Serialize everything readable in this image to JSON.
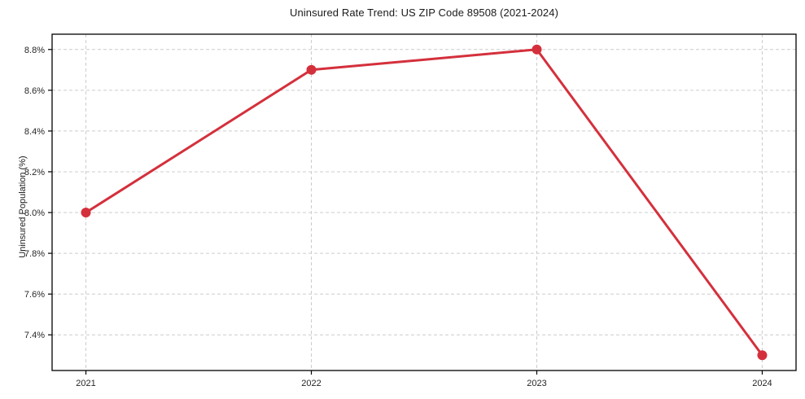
{
  "chart_data": {
    "type": "line",
    "title": "Uninsured Rate Trend: US ZIP Code 89508 (2021-2024)",
    "xlabel": "",
    "ylabel": "Uninsured Population (%)",
    "x": [
      2021,
      2022,
      2023,
      2024
    ],
    "x_tick_labels": [
      "2021",
      "2022",
      "2023",
      "2024"
    ],
    "series": [
      {
        "values": [
          8.0,
          8.7,
          8.8,
          7.3
        ],
        "color": "#d4303c",
        "marker": "circle"
      }
    ],
    "y_ticks": [
      7.4,
      7.6,
      7.8,
      8.0,
      8.2,
      8.4,
      8.6,
      8.8
    ],
    "y_tick_labels": [
      "7.4%",
      "7.6%",
      "7.8%",
      "8.0%",
      "8.2%",
      "8.4%",
      "8.6%",
      "8.8%"
    ],
    "xlim": [
      2020.85,
      2024.15
    ],
    "ylim": [
      7.225,
      8.875
    ],
    "grid": true,
    "grid_color": "#cccccc",
    "spine_color": "#000000",
    "tick_color": "#000000",
    "text_color": "#262626",
    "legend": "none",
    "background": "#ffffff"
  }
}
